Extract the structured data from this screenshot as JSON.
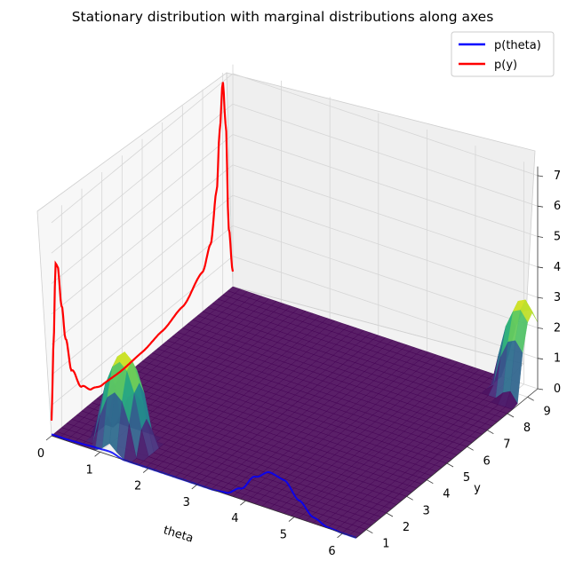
{
  "chart_data": {
    "type": "surface3d",
    "title": "Stationary distribution with marginal distributions along axes",
    "xlabel": "theta",
    "ylabel": "y",
    "zlabel": "",
    "xlim": [
      0,
      6.2832
    ],
    "ylim": [
      0.5,
      9.5
    ],
    "zlim": [
      -0.3,
      7.0
    ],
    "xticks": [
      "0",
      "1",
      "2",
      "3",
      "4",
      "5",
      "6"
    ],
    "yticks": [
      "1",
      "2",
      "3",
      "4",
      "5",
      "6",
      "7",
      "8",
      "9"
    ],
    "zticks": [
      "0",
      "1",
      "2",
      "3",
      "4",
      "5",
      "6",
      "7"
    ],
    "grid": true,
    "legend_position": "top-right",
    "colormap": "viridis",
    "series": [
      {
        "name": "p(theta)",
        "color": "#0000ff",
        "plane": "y = 0.5 (front wall)",
        "x": [
          0,
          0.3,
          0.6,
          0.9,
          1.2,
          1.5,
          1.8,
          2.1,
          2.4,
          2.7,
          3.0,
          3.3,
          3.6,
          3.9,
          4.2,
          4.5,
          4.8,
          5.1,
          5.4,
          5.7,
          6.0,
          6.28
        ],
        "values": [
          0.05,
          0.05,
          0.07,
          0.1,
          0.12,
          0.0,
          0.0,
          0.0,
          0.0,
          0.0,
          0.0,
          0.0,
          0.05,
          0.35,
          0.9,
          1.2,
          1.1,
          0.6,
          0.2,
          0.03,
          0.0,
          0.0
        ]
      },
      {
        "name": "p(y)",
        "color": "#ff0000",
        "plane": "theta = 0 (left wall)",
        "x": [
          0.5,
          0.6,
          0.7,
          0.8,
          1.0,
          1.2,
          1.5,
          2.0,
          2.5,
          3.0,
          4.0,
          5.0,
          6.0,
          7.0,
          8.0,
          8.4,
          8.7,
          8.85,
          9.0,
          9.15,
          9.3,
          9.5
        ],
        "values": [
          0.5,
          3.0,
          5.55,
          5.4,
          4.0,
          2.8,
          1.6,
          0.8,
          0.45,
          0.3,
          0.25,
          0.3,
          0.45,
          0.7,
          1.3,
          2.0,
          3.6,
          5.5,
          7.0,
          5.5,
          2.0,
          0.5
        ]
      }
    ],
    "surface": {
      "description_free_fields_only": true,
      "peaks": [
        {
          "theta": 1.2,
          "y": 1.2,
          "z": 3.0
        },
        {
          "theta": 6.1,
          "y": 9.2,
          "z": 3.0
        }
      ],
      "baseline_z": 0.0
    }
  },
  "legend": {
    "entries": [
      {
        "label": "p(theta)",
        "color": "#0000ff"
      },
      {
        "label": "p(y)",
        "color": "#ff0000"
      }
    ]
  }
}
